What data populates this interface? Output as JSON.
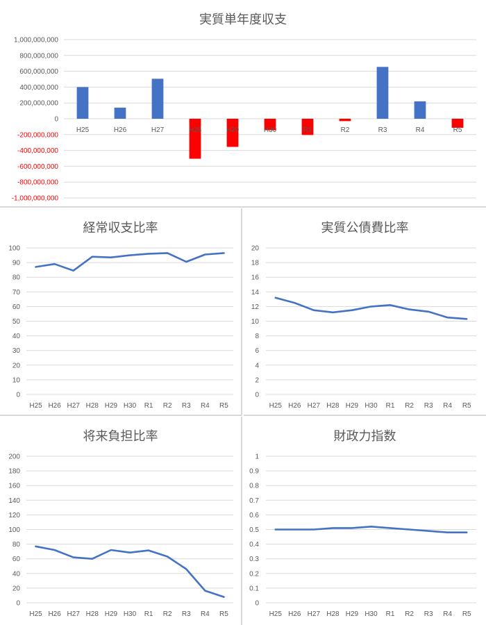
{
  "colors": {
    "positive": "#4472C4",
    "negative": "#FF0000",
    "line": "#4472C4",
    "grid": "#D9D9D9",
    "text": "#595959"
  },
  "chart_data": [
    {
      "type": "bar",
      "title": "実質単年度収支",
      "categories": [
        "H25",
        "H26",
        "H27",
        "H28",
        "H29",
        "H30",
        "R1",
        "R2",
        "R3",
        "R4",
        "R5"
      ],
      "values": [
        400000000,
        140000000,
        505000000,
        -505000000,
        -355000000,
        -145000000,
        -205000000,
        -30000000,
        655000000,
        220000000,
        -115000000
      ],
      "ylim": [
        -1000000000,
        1000000000
      ],
      "ytick_labels": [
        "1,000,000,000",
        "800,000,000",
        "600,000,000",
        "400,000,000",
        "200,000,000",
        "0",
        "-200,000,000",
        "-400,000,000",
        "-600,000,000",
        "-800,000,000",
        "-1,000,000,000"
      ],
      "grid": true
    },
    {
      "type": "line",
      "title": "経常収支比率",
      "categories": [
        "H25",
        "H26",
        "H27",
        "H28",
        "H29",
        "H30",
        "R1",
        "R2",
        "R3",
        "R4",
        "R5"
      ],
      "values": [
        87,
        89,
        84.5,
        94,
        93.5,
        95,
        96,
        96.5,
        90.5,
        95.5,
        96.5
      ],
      "ylim": [
        0,
        100
      ],
      "ytick_labels": [
        "100",
        "90",
        "80",
        "70",
        "60",
        "50",
        "40",
        "30",
        "20",
        "10",
        "0"
      ],
      "grid": true
    },
    {
      "type": "line",
      "title": "実質公債費比率",
      "categories": [
        "H25",
        "H26",
        "H27",
        "H28",
        "H29",
        "H30",
        "R1",
        "R2",
        "R3",
        "R4",
        "R5"
      ],
      "values": [
        13.2,
        12.5,
        11.5,
        11.2,
        11.5,
        12.0,
        12.2,
        11.6,
        11.3,
        10.5,
        10.3
      ],
      "ylim": [
        0,
        20
      ],
      "ytick_labels": [
        "20",
        "18",
        "16",
        "14",
        "12",
        "10",
        "8",
        "6",
        "4",
        "2",
        "0"
      ],
      "grid": true
    },
    {
      "type": "line",
      "title": "将来負担比率",
      "categories": [
        "H25",
        "H26",
        "H27",
        "H28",
        "H29",
        "H30",
        "R1",
        "R2",
        "R3",
        "R4",
        "R5"
      ],
      "values": [
        77,
        72,
        62,
        60,
        72,
        68.5,
        71.5,
        63,
        46,
        16.5,
        8
      ],
      "ylim": [
        0,
        200
      ],
      "ytick_labels": [
        "200",
        "180",
        "160",
        "140",
        "120",
        "100",
        "80",
        "60",
        "40",
        "20",
        "0"
      ],
      "grid": true
    },
    {
      "type": "line",
      "title": "財政力指数",
      "categories": [
        "H25",
        "H26",
        "H27",
        "H28",
        "H29",
        "H30",
        "R1",
        "R2",
        "R3",
        "R4",
        "R5"
      ],
      "values": [
        0.5,
        0.5,
        0.5,
        0.51,
        0.51,
        0.52,
        0.51,
        0.5,
        0.49,
        0.48,
        0.48
      ],
      "ylim": [
        0,
        1
      ],
      "ytick_labels": [
        "1",
        "0.9",
        "0.8",
        "0.7",
        "0.6",
        "0.5",
        "0.4",
        "0.3",
        "0.2",
        "0.1",
        "0"
      ],
      "grid": true
    }
  ]
}
